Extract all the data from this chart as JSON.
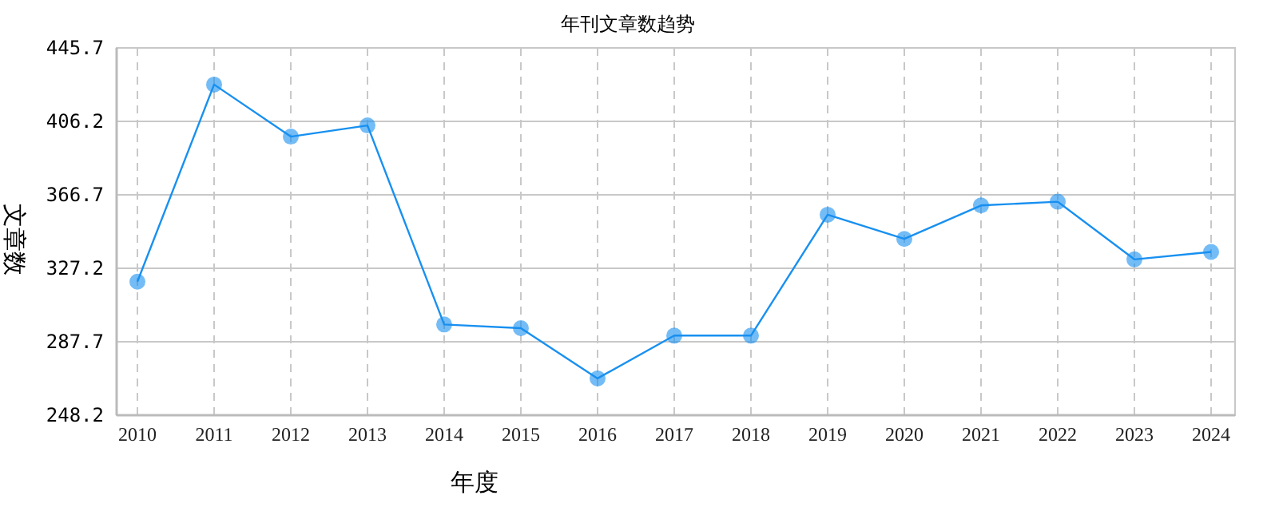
{
  "chart_data": {
    "type": "line",
    "title": "年刊文章数趋势",
    "xlabel": "年度",
    "ylabel": "文章数",
    "categories": [
      "2010",
      "2011",
      "2012",
      "2013",
      "2014",
      "2015",
      "2016",
      "2017",
      "2018",
      "2019",
      "2020",
      "2021",
      "2022",
      "2023",
      "2024"
    ],
    "series": [
      {
        "color": "#1890f0",
        "values": [
          320,
          426,
          398,
          404,
          297,
          295,
          268,
          291,
          291,
          356,
          343,
          361,
          363,
          332,
          336
        ]
      }
    ],
    "ylim": [
      248.2,
      445.7
    ],
    "yticks": [
      248.2,
      287.7,
      327.2,
      366.7,
      406.2,
      445.7
    ],
    "grid": true,
    "marker": "circle",
    "line_style": "solid"
  }
}
